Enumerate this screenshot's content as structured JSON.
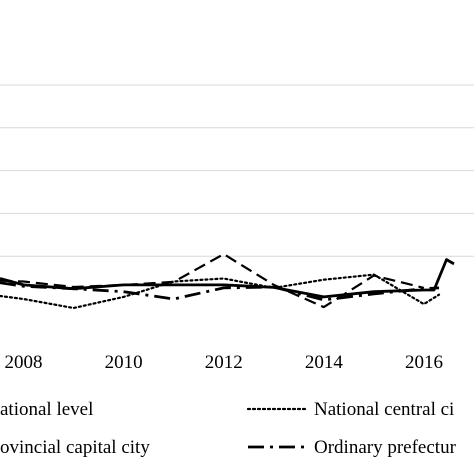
{
  "chart_data": {
    "type": "line",
    "x": [
      2007,
      2008,
      2009,
      2010,
      2011,
      2012,
      2013,
      2014,
      2015,
      2016,
      2017
    ],
    "xlim": [
      2007.53,
      2017.0
    ],
    "ylim": [
      0,
      5
    ],
    "x_ticks": [
      {
        "value": 2008,
        "label": "2008"
      },
      {
        "value": 2010,
        "label": "2010"
      },
      {
        "value": 2012,
        "label": "2012"
      },
      {
        "value": 2014,
        "label": "2014"
      },
      {
        "value": 2016,
        "label": "2016"
      }
    ],
    "y_grid": [
      1,
      2,
      3,
      4,
      5
    ],
    "grid": "horizontal",
    "legend_position": "bottom",
    "series": [
      {
        "name": "National level",
        "legend_label": "ational level",
        "style": "solid",
        "color": "#000000",
        "points": [
          [
            2007.53,
            0.48
          ],
          [
            2008,
            0.33
          ],
          [
            2009,
            0.24
          ],
          [
            2010,
            0.33
          ],
          [
            2011,
            0.33
          ],
          [
            2012,
            0.33
          ],
          [
            2013,
            0.27
          ],
          [
            2014,
            0.05
          ],
          [
            2015,
            0.17
          ],
          [
            2016,
            0.21
          ],
          [
            2016.2,
            0.21
          ],
          [
            2016.45,
            0.92
          ],
          [
            2016.6,
            0.82
          ]
        ]
      },
      {
        "name": "National central city",
        "legend_label": "National central ci",
        "style": "dotted",
        "color": "#000000",
        "points": [
          [
            2007.53,
            0.07
          ],
          [
            2008,
            0.0
          ],
          [
            2009,
            -0.21
          ],
          [
            2010,
            0.05
          ],
          [
            2011,
            0.41
          ],
          [
            2012,
            0.48
          ],
          [
            2013,
            0.26
          ],
          [
            2014,
            0.45
          ],
          [
            2015,
            0.57
          ],
          [
            2016,
            -0.12
          ],
          [
            2016.3,
            0.1
          ]
        ]
      },
      {
        "name": "Provincial capital city",
        "legend_label": "ovincial capital city",
        "style": "dashed",
        "color": "#000000",
        "points": [
          [
            2007.53,
            0.43
          ],
          [
            2008,
            0.41
          ],
          [
            2009,
            0.28
          ],
          [
            2010,
            0.33
          ],
          [
            2011,
            0.4
          ],
          [
            2012,
            1.05
          ],
          [
            2013,
            0.33
          ],
          [
            2014,
            -0.19
          ],
          [
            2015,
            0.55
          ],
          [
            2016,
            0.26
          ]
        ]
      },
      {
        "name": "Ordinary prefecture-level city",
        "legend_label": "Ordinary prefectur",
        "style": "dashdot",
        "color": "#000000",
        "points": [
          [
            2007.53,
            0.38
          ],
          [
            2008,
            0.3
          ],
          [
            2009,
            0.24
          ],
          [
            2010,
            0.17
          ],
          [
            2011,
            0.0
          ],
          [
            2012,
            0.26
          ],
          [
            2013,
            0.28
          ],
          [
            2014,
            -0.02
          ],
          [
            2015,
            0.12
          ],
          [
            2016,
            0.24
          ],
          [
            2016.3,
            0.26
          ]
        ]
      }
    ]
  }
}
